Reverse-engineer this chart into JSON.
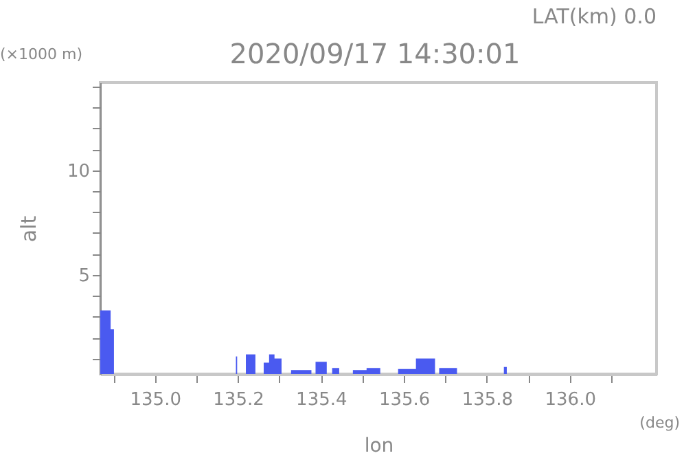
{
  "chart_data": {
    "type": "area",
    "title": "2020/09/17 14:30:01",
    "subtitle": "LAT(km) 0.0",
    "xlabel": "lon",
    "ylabel": "alt",
    "annotations": [
      "(×1000 m)",
      "(deg)"
    ],
    "x": [
      134.868,
      134.884,
      134.893,
      134.901,
      134.902,
      135.195,
      135.198,
      135.2,
      135.219,
      135.242,
      135.25,
      135.262,
      135.275,
      135.288,
      135.305,
      135.31,
      135.328,
      135.377,
      135.38,
      135.387,
      135.414,
      135.42,
      135.427,
      135.444,
      135.45,
      135.477,
      135.51,
      135.543,
      135.55,
      135.586,
      135.629,
      135.675,
      135.68,
      135.685,
      135.728,
      135.73,
      135.841,
      135.848
    ],
    "series": [
      {
        "color": "#4a5af0",
        "values": [
          3.3,
          3.3,
          2.4,
          1.8,
          null,
          1.1,
          1.1,
          null,
          1.2,
          1.2,
          null,
          0.8,
          1.2,
          1.0,
          0.5,
          null,
          0.45,
          0.6,
          null,
          0.84,
          0.6,
          null,
          0.55,
          0.55,
          null,
          0.45,
          0.55,
          0.4,
          null,
          0.5,
          1.0,
          0.6,
          null,
          0.55,
          0.55,
          null,
          0.6,
          0.6
        ]
      }
    ],
    "xlim": [
      134.868,
      136.209
    ],
    "ylim": [
      0.26,
      14.2
    ],
    "xticks": [
      {
        "value": 134.9,
        "label": null
      },
      {
        "value": 135,
        "label": "135.0"
      },
      {
        "value": 135.1,
        "label": null
      },
      {
        "value": 135.2,
        "label": "135.2"
      },
      {
        "value": 135.3,
        "label": null
      },
      {
        "value": 135.4,
        "label": "135.4"
      },
      {
        "value": 135.5,
        "label": null
      },
      {
        "value": 135.6,
        "label": "135.6"
      },
      {
        "value": 135.7,
        "label": null
      },
      {
        "value": 135.8,
        "label": "135.8"
      },
      {
        "value": 135.9,
        "label": null
      },
      {
        "value": 136,
        "label": "136.0"
      },
      {
        "value": 136.1,
        "label": null
      }
    ],
    "yticks": [
      {
        "value": 1,
        "label": null
      },
      {
        "value": 2,
        "label": null
      },
      {
        "value": 3,
        "label": null
      },
      {
        "value": 4,
        "label": null
      },
      5,
      {
        "value": 6,
        "label": null
      },
      {
        "value": 7,
        "label": null
      },
      {
        "value": 8,
        "label": null
      },
      {
        "value": 9,
        "label": null
      },
      10,
      {
        "value": 11,
        "label": null
      },
      {
        "value": 12,
        "label": null
      },
      {
        "value": 13,
        "label": null
      },
      {
        "value": 14,
        "label": null
      }
    ],
    "grid": false
  }
}
